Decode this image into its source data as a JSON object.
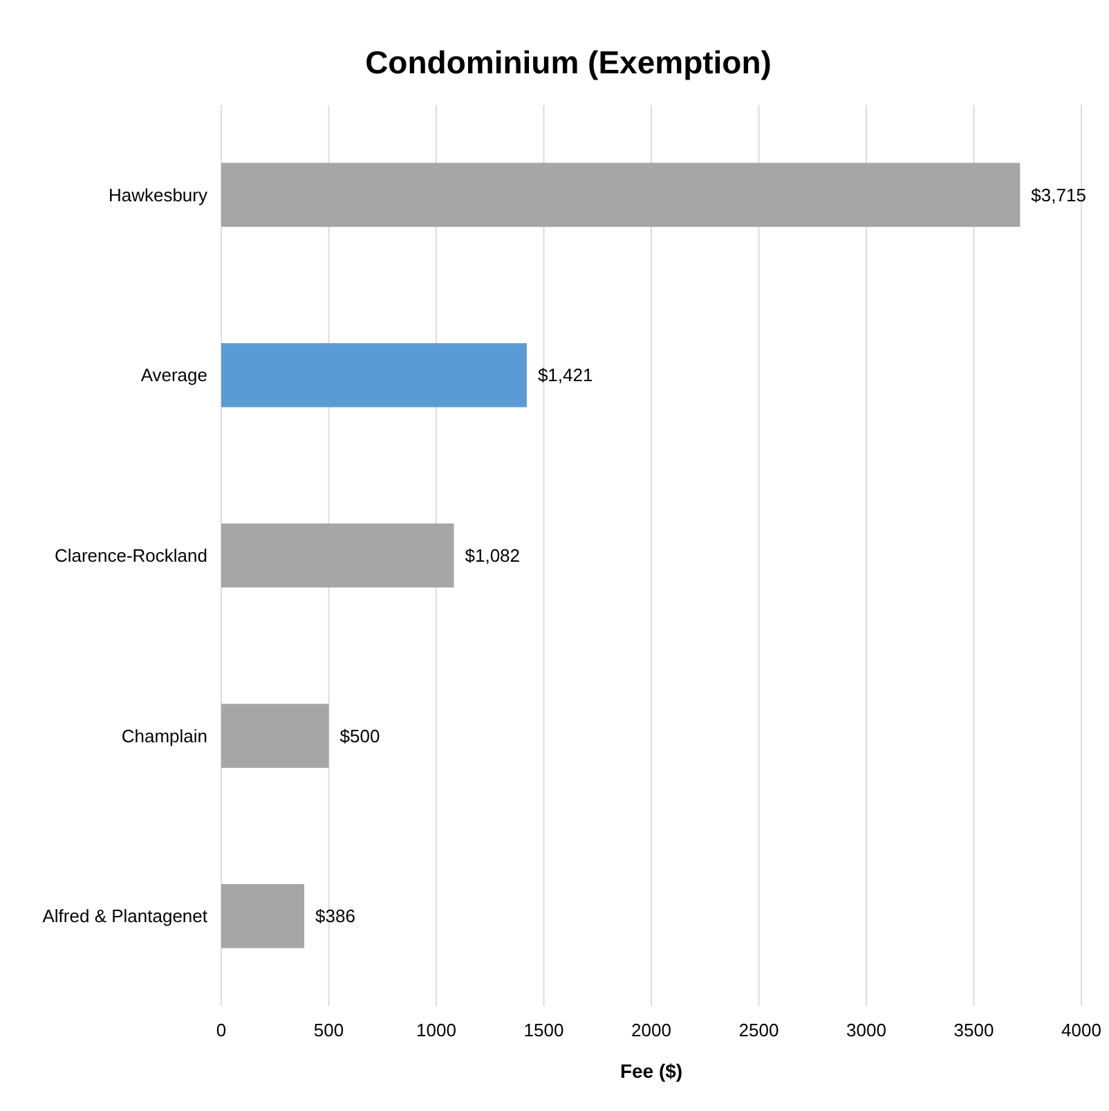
{
  "chart_data": {
    "type": "bar",
    "orientation": "horizontal",
    "title": "Condominium (Exemption)",
    "xlabel": "Fee ($)",
    "categories": [
      "Hawkesbury",
      "Average",
      "Clarence-Rockland",
      "Champlain",
      "Alfred & Plantagenet"
    ],
    "values": [
      3715,
      1421,
      1082,
      500,
      386
    ],
    "colors": [
      "#a6a6a6",
      "#5b9bd5",
      "#a6a6a6",
      "#a6a6a6",
      "#a6a6a6"
    ],
    "value_labels": [
      "$3,715",
      "$1,421",
      "$1,082",
      "$500",
      "$386"
    ],
    "xlim": [
      0,
      4000
    ],
    "xticks": [
      0,
      500,
      1000,
      1500,
      2000,
      2500,
      3000,
      3500,
      4000
    ],
    "grid": "x"
  }
}
